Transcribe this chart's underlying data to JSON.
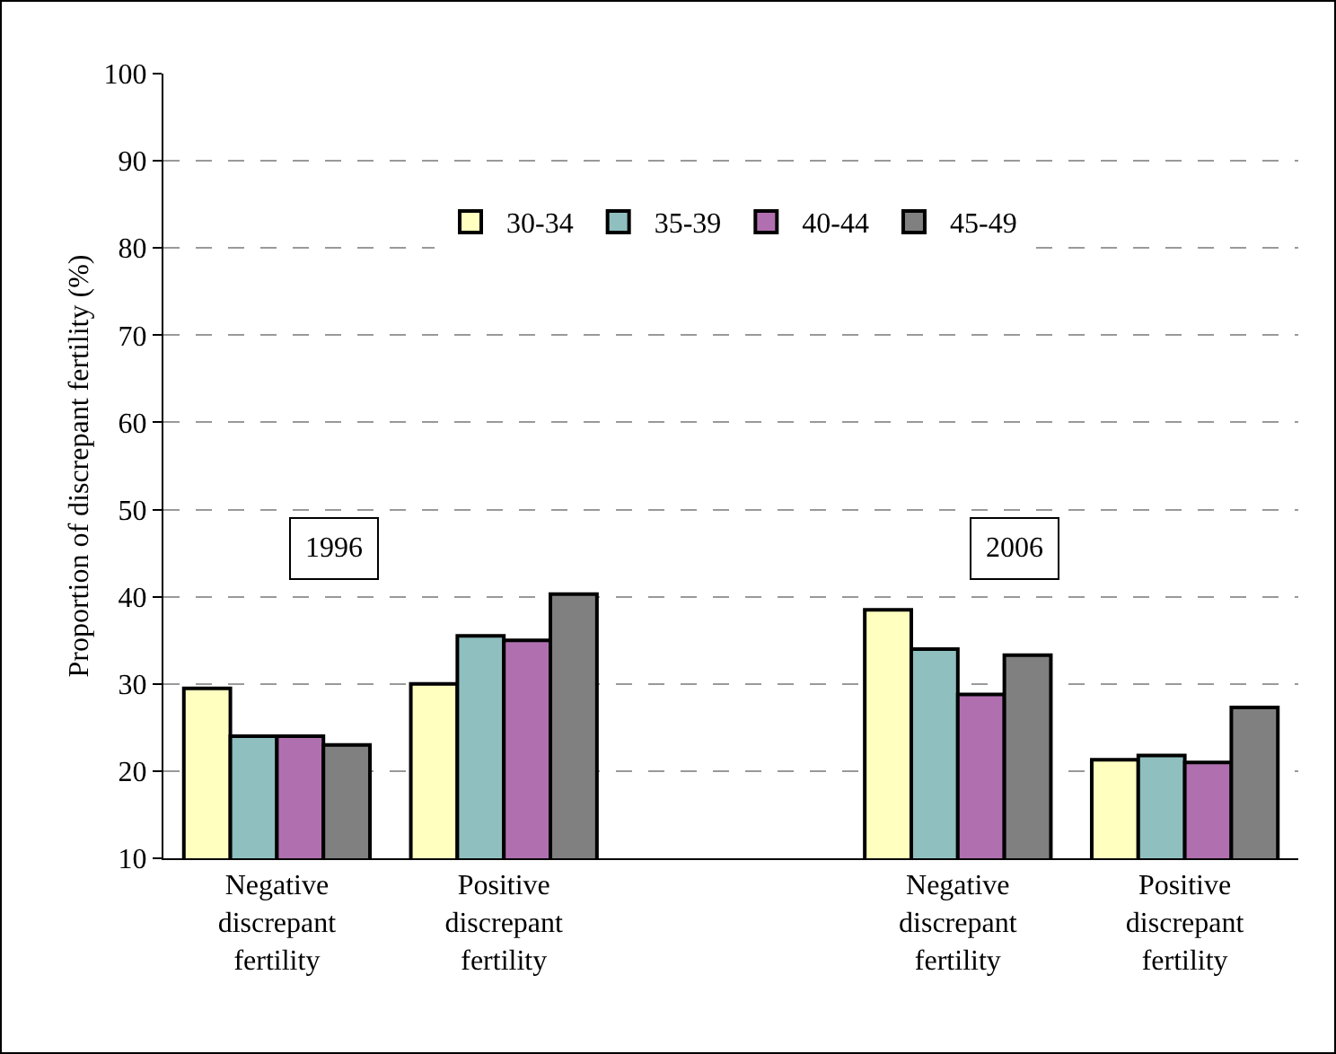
{
  "chart_data": {
    "type": "bar",
    "ylabel": "Proportion of discrepant fertility (%)",
    "categories": [
      "Negative discrepant fertility",
      "Positive discrepant fertility",
      null,
      "Negative discrepant fertility",
      "Positive discrepant fertility"
    ],
    "series": [
      {
        "name": "30-34",
        "color": "#ffffc0",
        "values": [
          29.5,
          30,
          null,
          38.5,
          21.3
        ]
      },
      {
        "name": "35-39",
        "color": "#8fbfbf",
        "values": [
          24,
          35.5,
          null,
          34,
          21.8
        ]
      },
      {
        "name": "40-44",
        "color": "#b070b0",
        "values": [
          24,
          35,
          null,
          28.8,
          21
        ]
      },
      {
        "name": "45-49",
        "color": "#808080",
        "values": [
          23,
          40.3,
          null,
          33.3,
          27.3
        ]
      }
    ],
    "ylim": [
      10,
      100
    ],
    "yticks": [
      10,
      20,
      30,
      40,
      50,
      60,
      70,
      80,
      90,
      100
    ],
    "grid": "y",
    "legend": "top",
    "annotations": [
      "1996",
      "2006"
    ]
  }
}
